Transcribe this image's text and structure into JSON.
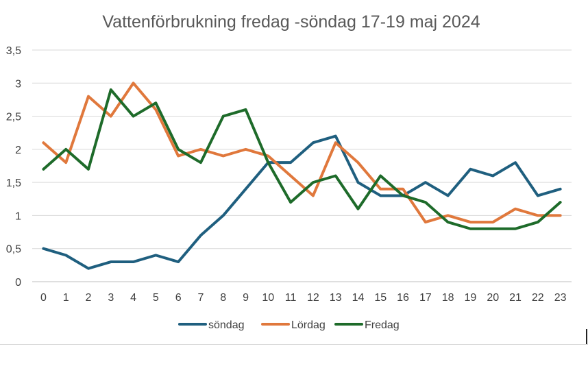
{
  "chart_data": {
    "type": "line",
    "title": "Vattenförbrukning fredag -söndag  17-19 maj 2024",
    "xlabel": "",
    "ylabel": "",
    "x": [
      0,
      1,
      2,
      3,
      4,
      5,
      6,
      7,
      8,
      9,
      10,
      11,
      12,
      13,
      14,
      15,
      16,
      17,
      18,
      19,
      20,
      21,
      22,
      23
    ],
    "x_tick_labels": [
      "0",
      "1",
      "2",
      "3",
      "4",
      "5",
      "6",
      "7",
      "8",
      "9",
      "10",
      "11",
      "12",
      "13",
      "14",
      "15",
      "16",
      "17",
      "18",
      "19",
      "20",
      "21",
      "22",
      "23"
    ],
    "y_tick_labels": [
      "0",
      "0,5",
      "1",
      "1,5",
      "2",
      "2,5",
      "3",
      "3,5"
    ],
    "y_ticks": [
      0,
      0.5,
      1,
      1.5,
      2,
      2.5,
      3,
      3.5
    ],
    "ylim": [
      0,
      3.5
    ],
    "grid": "horizontal",
    "legend_position": "bottom",
    "series": [
      {
        "name": "söndag",
        "color": "#1f5f7f",
        "values": [
          0.5,
          0.4,
          0.2,
          0.3,
          0.3,
          0.4,
          0.3,
          0.7,
          1.0,
          1.4,
          1.8,
          1.8,
          2.1,
          2.2,
          1.5,
          1.3,
          1.3,
          1.5,
          1.3,
          1.7,
          1.6,
          1.8,
          1.3,
          1.4
        ]
      },
      {
        "name": "Lördag",
        "color": "#e0783c",
        "values": [
          2.1,
          1.8,
          2.8,
          2.5,
          3.0,
          2.6,
          1.9,
          2.0,
          1.9,
          2.0,
          1.9,
          1.6,
          1.3,
          2.1,
          1.8,
          1.4,
          1.4,
          0.9,
          1.0,
          0.9,
          0.9,
          1.1,
          1.0,
          1.0
        ]
      },
      {
        "name": "Fredag",
        "color": "#1e6b2a",
        "values": [
          1.7,
          2.0,
          1.7,
          2.9,
          2.5,
          2.7,
          2.0,
          1.8,
          2.5,
          2.6,
          1.8,
          1.2,
          1.5,
          1.6,
          1.1,
          1.6,
          1.3,
          1.2,
          0.9,
          0.8,
          0.8,
          0.8,
          0.9,
          1.2
        ]
      }
    ]
  }
}
